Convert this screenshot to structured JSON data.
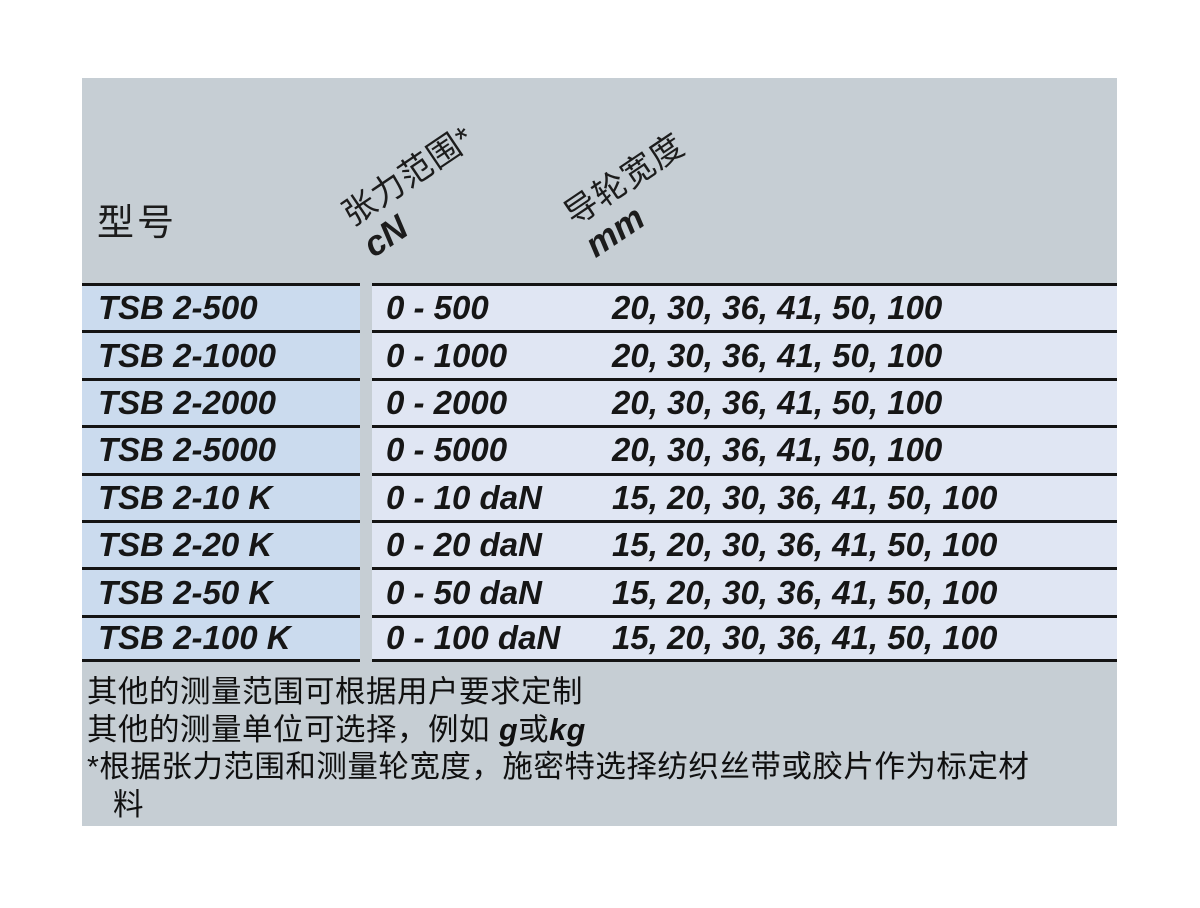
{
  "colors": {
    "panel_bg": "#c6ced4",
    "model_cell_bg": "#cbdbee",
    "value_cell_bg": "#e0e6f3",
    "rule": "#141414",
    "text": "#111111"
  },
  "header": {
    "col_model": "型号",
    "col_range_label": "张力范围*",
    "col_range_unit": "cN",
    "col_width_label": "导轮宽度",
    "col_width_unit": "mm"
  },
  "table": {
    "rows": [
      {
        "model": "TSB 2-500",
        "range": "0 - 500",
        "widths": "20, 30, 36, 41, 50, 100"
      },
      {
        "model": "TSB 2-1000",
        "range": "0 - 1000",
        "widths": "20, 30, 36, 41, 50, 100"
      },
      {
        "model": "TSB 2-2000",
        "range": "0 - 2000",
        "widths": "20, 30, 36, 41, 50, 100"
      },
      {
        "model": "TSB 2-5000",
        "range": "0 - 5000",
        "widths": "20, 30, 36, 41, 50, 100"
      },
      {
        "model": "TSB 2-10 K",
        "range": "0 - 10 daN",
        "widths": "15, 20, 30, 36, 41, 50, 100"
      },
      {
        "model": "TSB 2-20 K",
        "range": "0 - 20 daN",
        "widths": "15, 20, 30, 36, 41, 50, 100"
      },
      {
        "model": "TSB 2-50 K",
        "range": "0 - 50 daN",
        "widths": "15, 20, 30, 36, 41, 50, 100"
      },
      {
        "model": "TSB 2-100 K",
        "range": "0 - 100 daN",
        "widths": "15, 20, 30, 36, 41, 50, 100"
      }
    ]
  },
  "footnotes": {
    "line1": "其他的测量范围可根据用户要求定制",
    "line2_prefix": "其他的测量单位可选择，例如 ",
    "line2_g": "g",
    "line2_or": "或",
    "line2_kg": "kg",
    "line3": "*根据张力范围和测量轮宽度，施密特选择纺织丝带或胶片作为标定材",
    "line4": "料"
  }
}
